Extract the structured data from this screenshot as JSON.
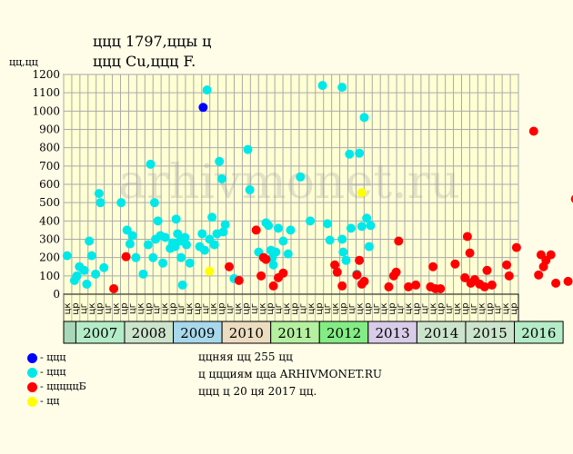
{
  "header": {
    "title_line1": "ццц 1797,ццы ц",
    "title_line2": "ццц Cu,ццц F.",
    "y_unit": "цц,цц"
  },
  "watermark": "arhivmonet.ru",
  "legend": [
    {
      "label": "- ццц",
      "color": "#0000ff"
    },
    {
      "label": "- ццц",
      "color": "#00e8e8"
    },
    {
      "label": "- цццццБ",
      "color": "#ff0000"
    },
    {
      "label": "- цц",
      "color": "#ffff00"
    }
  ],
  "notes": [
    "ццняя цц 255 цц",
    "ц ццциям цца ARHIVMONET.RU",
    "ццц ц 20 ця 2017 цц."
  ],
  "colors": {
    "plot_bg": "#ffffd4",
    "grid": "#aaaaaa",
    "blue": "#0000ff",
    "cyan": "#00e8e8",
    "red": "#ff0000",
    "yellow": "#ffff00"
  },
  "chart_data": {
    "type": "scatter",
    "y_ticks": [
      0,
      100,
      200,
      300,
      400,
      500,
      600,
      700,
      800,
      900,
      1000,
      1100,
      1200
    ],
    "ylim": [
      0,
      1200
    ],
    "grid": true,
    "half_labels": [
      "цк",
      "цр",
      "цг",
      "цк",
      "цр",
      "цг",
      "цк",
      "цр",
      "цг",
      "цк",
      "цр",
      "цг",
      "цк",
      "цр",
      "цг",
      "цк",
      "цр",
      "цг",
      "цк",
      "цр",
      "цг",
      "цк",
      "цр",
      "цг",
      "цк",
      "цр",
      "цг",
      "цк",
      "цр",
      "цг",
      "цк",
      "цр",
      "цг",
      "цк",
      "цр",
      "цг",
      "цк",
      "цр",
      "цг",
      "цк",
      "цр",
      "цг",
      "цк",
      "цр",
      "цг",
      "цк",
      "цр",
      "цг",
      "цк",
      "цр",
      "цг",
      "цк",
      "цр",
      "цг",
      "цк",
      "цр"
    ],
    "years": [
      {
        "label": "2007",
        "color": "#b4ecc8"
      },
      {
        "label": "2008",
        "color": "#cce4cc"
      },
      {
        "label": "2009",
        "color": "#a8d8ec"
      },
      {
        "label": "2010",
        "color": "#ecdcc0"
      },
      {
        "label": "2011",
        "color": "#b4f0a0"
      },
      {
        "label": "2012",
        "color": "#84ec84"
      },
      {
        "label": "2013",
        "color": "#d8cce8"
      },
      {
        "label": "2014",
        "color": "#cce4cc"
      },
      {
        "label": "2015",
        "color": "#cce4cc"
      },
      {
        "label": "2016",
        "color": "#b4ecc8"
      }
    ],
    "series": [
      {
        "color": "#0000ff",
        "points": [
          [
            2009.17,
            1020
          ]
        ]
      },
      {
        "color": "#ffff00",
        "points": [
          [
            2009.3,
            125
          ],
          [
            2012.4,
            555
          ]
        ]
      },
      {
        "color": "#00e8e8",
        "points": [
          [
            2006.4,
            210
          ],
          [
            2006.55,
            75
          ],
          [
            2006.6,
            100
          ],
          [
            2006.65,
            150
          ],
          [
            2006.75,
            130
          ],
          [
            2006.8,
            55
          ],
          [
            2006.85,
            290
          ],
          [
            2006.9,
            210
          ],
          [
            2006.98,
            110
          ],
          [
            2007.05,
            550
          ],
          [
            2007.08,
            500
          ],
          [
            2007.15,
            145
          ],
          [
            2007.5,
            500
          ],
          [
            2007.62,
            350
          ],
          [
            2007.68,
            275
          ],
          [
            2007.73,
            320
          ],
          [
            2007.8,
            200
          ],
          [
            2007.95,
            110
          ],
          [
            2008.05,
            270
          ],
          [
            2008.1,
            710
          ],
          [
            2008.15,
            200
          ],
          [
            2008.18,
            500
          ],
          [
            2008.2,
            300
          ],
          [
            2008.25,
            400
          ],
          [
            2008.3,
            320
          ],
          [
            2008.35,
            170
          ],
          [
            2008.4,
            310
          ],
          [
            2008.5,
            250
          ],
          [
            2008.55,
            280
          ],
          [
            2008.6,
            260
          ],
          [
            2008.62,
            410
          ],
          [
            2008.65,
            330
          ],
          [
            2008.7,
            290
          ],
          [
            2008.72,
            200
          ],
          [
            2008.75,
            50
          ],
          [
            2008.8,
            310
          ],
          [
            2008.83,
            270
          ],
          [
            2008.9,
            170
          ],
          [
            2009.1,
            260
          ],
          [
            2009.15,
            330
          ],
          [
            2009.2,
            240
          ],
          [
            2009.25,
            1115
          ],
          [
            2009.3,
            300
          ],
          [
            2009.35,
            420
          ],
          [
            2009.4,
            270
          ],
          [
            2009.45,
            330
          ],
          [
            2009.5,
            725
          ],
          [
            2009.55,
            630
          ],
          [
            2009.58,
            340
          ],
          [
            2009.62,
            380
          ],
          [
            2009.8,
            85
          ],
          [
            2010.08,
            790
          ],
          [
            2010.12,
            570
          ],
          [
            2010.3,
            230
          ],
          [
            2010.45,
            390
          ],
          [
            2010.5,
            375
          ],
          [
            2010.55,
            240
          ],
          [
            2010.58,
            200
          ],
          [
            2010.6,
            160
          ],
          [
            2010.65,
            230
          ],
          [
            2010.7,
            360
          ],
          [
            2010.8,
            290
          ],
          [
            2010.9,
            220
          ],
          [
            2010.95,
            350
          ],
          [
            2011.15,
            640
          ],
          [
            2011.35,
            400
          ],
          [
            2011.6,
            1140
          ],
          [
            2011.7,
            385
          ],
          [
            2011.75,
            295
          ],
          [
            2012.0,
            1130
          ],
          [
            2012.0,
            300
          ],
          [
            2012.02,
            230
          ],
          [
            2012.08,
            185
          ],
          [
            2012.15,
            765
          ],
          [
            2012.18,
            360
          ],
          [
            2012.3,
            110
          ],
          [
            2012.35,
            770
          ],
          [
            2012.4,
            370
          ],
          [
            2012.45,
            965
          ],
          [
            2012.5,
            415
          ],
          [
            2012.55,
            260
          ],
          [
            2012.58,
            375
          ]
        ]
      },
      {
        "color": "#ff0000",
        "points": [
          [
            2007.35,
            30
          ],
          [
            2007.6,
            205
          ],
          [
            2009.7,
            150
          ],
          [
            2009.9,
            75
          ],
          [
            2010.25,
            350
          ],
          [
            2010.35,
            100
          ],
          [
            2010.4,
            200
          ],
          [
            2010.45,
            190
          ],
          [
            2010.6,
            45
          ],
          [
            2010.7,
            90
          ],
          [
            2010.8,
            115
          ],
          [
            2011.85,
            160
          ],
          [
            2011.9,
            120
          ],
          [
            2012.0,
            45
          ],
          [
            2012.3,
            105
          ],
          [
            2012.35,
            185
          ],
          [
            2012.4,
            55
          ],
          [
            2012.45,
            70
          ],
          [
            2012.95,
            40
          ],
          [
            2013.05,
            100
          ],
          [
            2013.1,
            120
          ],
          [
            2013.15,
            290
          ],
          [
            2013.35,
            40
          ],
          [
            2013.5,
            50
          ],
          [
            2013.8,
            40
          ],
          [
            2013.85,
            150
          ],
          [
            2013.9,
            30
          ],
          [
            2014.0,
            30
          ],
          [
            2014.3,
            165
          ],
          [
            2014.5,
            90
          ],
          [
            2014.55,
            315
          ],
          [
            2014.6,
            225
          ],
          [
            2014.62,
            60
          ],
          [
            2014.7,
            80
          ],
          [
            2014.8,
            55
          ],
          [
            2014.9,
            40
          ],
          [
            2014.95,
            130
          ],
          [
            2015.05,
            50
          ],
          [
            2015.35,
            160
          ],
          [
            2015.4,
            100
          ],
          [
            2015.55,
            255
          ],
          [
            2015.9,
            890
          ],
          [
            2016.0,
            105
          ],
          [
            2016.05,
            215
          ],
          [
            2016.1,
            150
          ],
          [
            2016.15,
            185
          ],
          [
            2016.25,
            215
          ],
          [
            2016.35,
            60
          ],
          [
            2016.6,
            70
          ],
          [
            2016.75,
            520
          ],
          [
            2016.85,
            115
          ]
        ]
      }
    ]
  }
}
